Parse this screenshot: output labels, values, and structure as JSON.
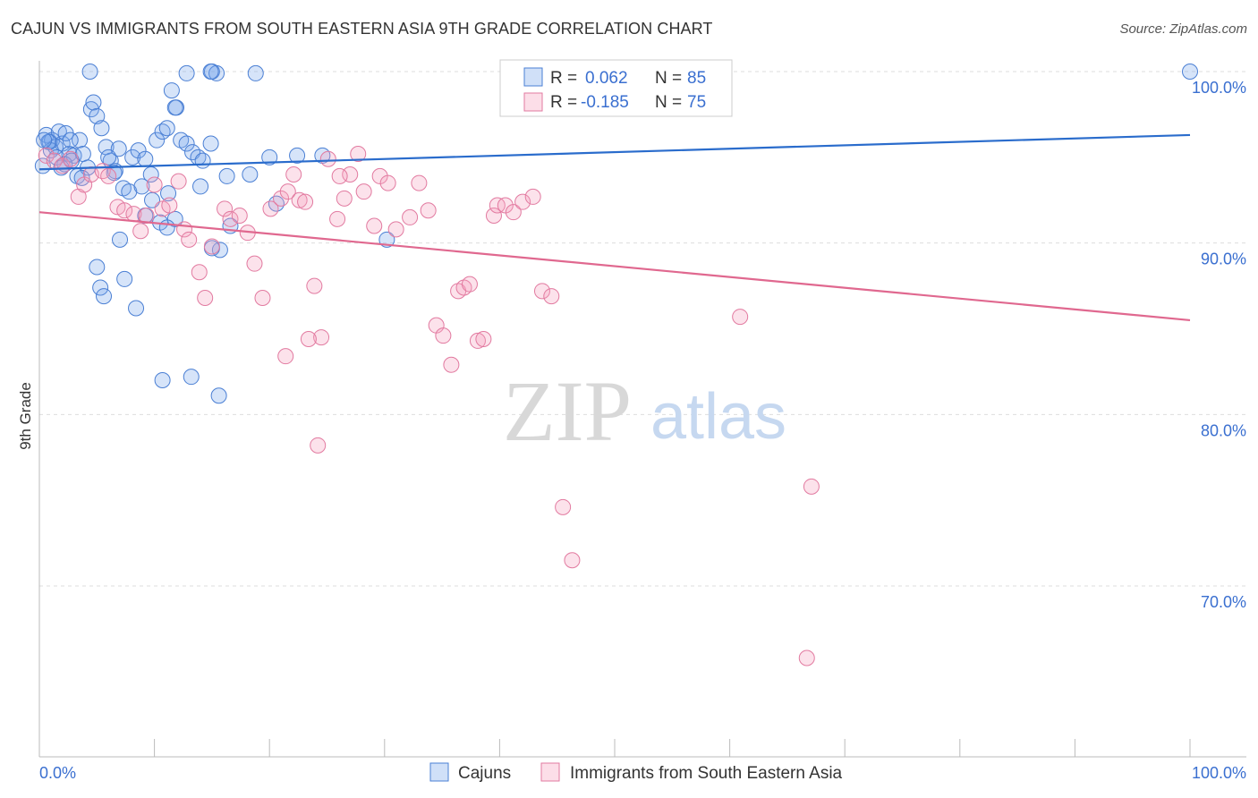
{
  "header": {
    "title": "CAJUN VS IMMIGRANTS FROM SOUTH EASTERN ASIA 9TH GRADE CORRELATION CHART",
    "source": "Source: ZipAtlas.com"
  },
  "watermark": {
    "zip": "ZIP",
    "atlas": "atlas"
  },
  "colors": {
    "blue": "#4a7fd4",
    "blue_fill": "rgba(120,165,235,0.30)",
    "blue_line": "#2a6ccc",
    "pink": "#e27aa0",
    "pink_fill": "rgba(245,160,190,0.30)",
    "pink_line": "#e0688f",
    "value_text": "#3a6fd0",
    "grid": "#dddddd"
  },
  "stats_legend": {
    "rows": [
      {
        "series": "Cajuns",
        "r_label": "R =",
        "r_value": "0.062",
        "n_label": "N =",
        "n_value": "85"
      },
      {
        "series": "Immigrants from South Eastern Asia",
        "r_label": "R =",
        "r_value": "-0.185",
        "n_label": "N =",
        "n_value": "75"
      }
    ]
  },
  "bottom_legend": {
    "items": [
      {
        "label": "Cajuns"
      },
      {
        "label": "Immigrants from South Eastern Asia"
      }
    ]
  },
  "chart_data": {
    "type": "scatter",
    "title": "CAJUN VS IMMIGRANTS FROM SOUTH EASTERN ASIA 9TH GRADE CORRELATION CHART",
    "xlabel": "",
    "ylabel": "9th Grade",
    "xlim": [
      0,
      100
    ],
    "ylim": [
      59.5,
      101
    ],
    "x_tick_labels": {
      "min": "0.0%",
      "max": "100.0%"
    },
    "y_ticks": [
      {
        "value": 100,
        "label": "100.0%"
      },
      {
        "value": 90,
        "label": "90.0%"
      },
      {
        "value": 80,
        "label": "80.0%"
      },
      {
        "value": 70,
        "label": "70.0%"
      }
    ],
    "grid": true,
    "series": [
      {
        "name": "Cajuns",
        "color": "blue",
        "trend": {
          "x": [
            0,
            100
          ],
          "y": [
            94.3,
            96.3
          ]
        },
        "points": [
          [
            0.3,
            94.5
          ],
          [
            0.6,
            96.3
          ],
          [
            0.9,
            95.9
          ],
          [
            1.1,
            96.0
          ],
          [
            1.4,
            95.6
          ],
          [
            1.7,
            96.5
          ],
          [
            2.0,
            95.8
          ],
          [
            2.3,
            96.4
          ],
          [
            2.6,
            95.2
          ],
          [
            3.0,
            95.1
          ],
          [
            1.0,
            95.4
          ],
          [
            1.5,
            95.0
          ],
          [
            2.2,
            94.6
          ],
          [
            3.3,
            93.9
          ],
          [
            3.5,
            96.0
          ],
          [
            2.8,
            94.8
          ],
          [
            3.8,
            95.2
          ],
          [
            4.2,
            94.4
          ],
          [
            4.5,
            97.8
          ],
          [
            4.7,
            98.2
          ],
          [
            5.0,
            97.4
          ],
          [
            5.4,
            96.7
          ],
          [
            5.8,
            95.6
          ],
          [
            6.2,
            94.8
          ],
          [
            6.6,
            94.2
          ],
          [
            6.9,
            95.5
          ],
          [
            7.3,
            93.2
          ],
          [
            7.8,
            93.0
          ],
          [
            8.1,
            95.0
          ],
          [
            8.6,
            95.4
          ],
          [
            9.2,
            94.9
          ],
          [
            9.7,
            94.0
          ],
          [
            10.2,
            96.0
          ],
          [
            10.7,
            96.5
          ],
          [
            11.1,
            96.7
          ],
          [
            11.5,
            98.9
          ],
          [
            11.9,
            97.9
          ],
          [
            12.3,
            96.0
          ],
          [
            12.8,
            95.8
          ],
          [
            13.3,
            95.3
          ],
          [
            13.8,
            95.0
          ],
          [
            14.2,
            94.8
          ],
          [
            14.9,
            95.8
          ],
          [
            11.8,
            97.9
          ],
          [
            12.8,
            99.9
          ],
          [
            15.0,
            100.0
          ],
          [
            15.4,
            99.9
          ],
          [
            11.2,
            92.9
          ],
          [
            11.8,
            91.4
          ],
          [
            9.8,
            92.5
          ],
          [
            9.2,
            91.6
          ],
          [
            10.5,
            91.2
          ],
          [
            14.0,
            93.3
          ],
          [
            15.7,
            89.6
          ],
          [
            16.6,
            91.0
          ],
          [
            15.0,
            89.7
          ],
          [
            7.0,
            90.2
          ],
          [
            5.0,
            88.6
          ],
          [
            5.3,
            87.4
          ],
          [
            5.6,
            86.9
          ],
          [
            7.4,
            87.9
          ],
          [
            8.4,
            86.2
          ],
          [
            11.1,
            90.9
          ],
          [
            18.8,
            99.9
          ],
          [
            14.9,
            100.0
          ],
          [
            4.4,
            100.0
          ],
          [
            10.7,
            82.0
          ],
          [
            13.2,
            82.2
          ],
          [
            15.6,
            81.1
          ],
          [
            20.0,
            95.0
          ],
          [
            22.4,
            95.1
          ],
          [
            24.6,
            95.1
          ],
          [
            16.3,
            93.9
          ],
          [
            20.6,
            92.3
          ],
          [
            8.9,
            93.3
          ],
          [
            6.5,
            94.1
          ],
          [
            3.7,
            93.8
          ],
          [
            1.9,
            94.4
          ],
          [
            0.8,
            95.9
          ],
          [
            2.7,
            96.0
          ],
          [
            6.0,
            95.0
          ],
          [
            18.3,
            94.0
          ],
          [
            30.2,
            90.2
          ],
          [
            100.0,
            100.0
          ],
          [
            0.4,
            96.0
          ]
        ]
      },
      {
        "name": "Immigrants from South Eastern Asia",
        "color": "pink",
        "trend": {
          "x": [
            0,
            100
          ],
          "y": [
            91.8,
            85.5
          ]
        },
        "points": [
          [
            0.6,
            95.1
          ],
          [
            1.3,
            94.8
          ],
          [
            2.0,
            94.5
          ],
          [
            2.7,
            94.9
          ],
          [
            3.4,
            92.7
          ],
          [
            3.9,
            93.4
          ],
          [
            4.5,
            94.0
          ],
          [
            5.5,
            94.2
          ],
          [
            6.0,
            93.9
          ],
          [
            6.8,
            92.1
          ],
          [
            7.4,
            91.9
          ],
          [
            8.2,
            91.7
          ],
          [
            8.8,
            90.7
          ],
          [
            9.3,
            91.6
          ],
          [
            10.0,
            93.4
          ],
          [
            10.7,
            92.0
          ],
          [
            11.3,
            92.2
          ],
          [
            12.1,
            93.6
          ],
          [
            12.6,
            90.8
          ],
          [
            13.0,
            90.2
          ],
          [
            13.9,
            88.3
          ],
          [
            14.4,
            86.8
          ],
          [
            15.0,
            89.8
          ],
          [
            16.1,
            92.0
          ],
          [
            16.6,
            91.4
          ],
          [
            17.4,
            91.6
          ],
          [
            18.1,
            90.6
          ],
          [
            18.7,
            88.8
          ],
          [
            19.4,
            86.8
          ],
          [
            20.1,
            92.0
          ],
          [
            21.0,
            92.6
          ],
          [
            21.6,
            93.0
          ],
          [
            22.1,
            94.0
          ],
          [
            22.6,
            92.5
          ],
          [
            23.1,
            92.4
          ],
          [
            23.9,
            87.5
          ],
          [
            24.5,
            84.5
          ],
          [
            25.1,
            94.9
          ],
          [
            25.9,
            91.4
          ],
          [
            26.5,
            92.6
          ],
          [
            27.0,
            94.0
          ],
          [
            27.7,
            95.2
          ],
          [
            28.2,
            93.0
          ],
          [
            29.1,
            91.0
          ],
          [
            29.6,
            93.9
          ],
          [
            30.3,
            93.5
          ],
          [
            31.0,
            90.8
          ],
          [
            32.2,
            91.5
          ],
          [
            33.0,
            93.5
          ],
          [
            33.8,
            91.9
          ],
          [
            34.5,
            85.2
          ],
          [
            35.1,
            84.6
          ],
          [
            35.8,
            82.9
          ],
          [
            36.4,
            87.2
          ],
          [
            36.9,
            87.4
          ],
          [
            37.4,
            87.6
          ],
          [
            38.1,
            84.3
          ],
          [
            38.6,
            84.4
          ],
          [
            39.5,
            91.6
          ],
          [
            39.8,
            92.2
          ],
          [
            40.5,
            92.2
          ],
          [
            41.2,
            91.8
          ],
          [
            42.0,
            92.4
          ],
          [
            42.9,
            92.7
          ],
          [
            43.7,
            87.2
          ],
          [
            44.5,
            86.9
          ],
          [
            26.1,
            93.9
          ],
          [
            21.4,
            83.4
          ],
          [
            23.4,
            84.4
          ],
          [
            24.2,
            78.2
          ],
          [
            45.5,
            74.6
          ],
          [
            46.3,
            71.5
          ],
          [
            60.9,
            85.7
          ],
          [
            67.1,
            75.8
          ],
          [
            66.7,
            65.8
          ]
        ]
      }
    ]
  }
}
